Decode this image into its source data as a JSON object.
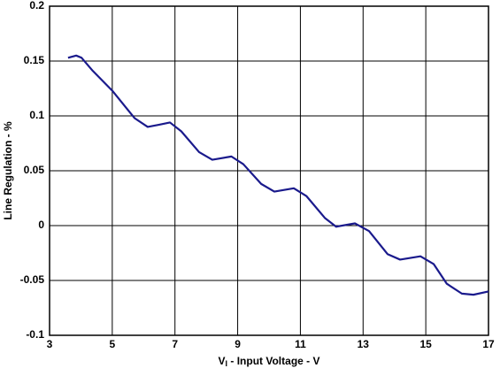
{
  "chart_data": {
    "type": "line",
    "xlabel": {
      "main": "V",
      "sub": "I",
      "rest": " - Input Voltage - V"
    },
    "ylabel": "Line Regulation - %",
    "x": [
      3.59,
      3.85,
      4.02,
      4.38,
      5.0,
      5.71,
      6.13,
      6.5,
      6.84,
      7.2,
      7.77,
      8.19,
      8.8,
      9.18,
      9.75,
      10.17,
      10.79,
      11.19,
      11.78,
      12.14,
      12.74,
      13.19,
      13.78,
      14.18,
      14.83,
      15.25,
      15.67,
      16.15,
      16.52,
      17.0
    ],
    "series": [
      {
        "color": "#1a1a8c",
        "values": [
          0.153,
          0.155,
          0.153,
          0.141,
          0.123,
          0.098,
          0.09,
          0.092,
          0.094,
          0.086,
          0.067,
          0.06,
          0.063,
          0.056,
          0.038,
          0.031,
          0.034,
          0.027,
          0.007,
          -0.001,
          0.002,
          -0.005,
          -0.026,
          -0.031,
          -0.028,
          -0.035,
          -0.053,
          -0.062,
          -0.063,
          -0.06
        ]
      }
    ],
    "xlim": [
      3,
      17
    ],
    "xticks": [
      3,
      5,
      7,
      9,
      11,
      13,
      15,
      17
    ],
    "ylim": [
      -0.1,
      0.2
    ],
    "yticks": [
      -0.1,
      -0.05,
      0,
      0.05,
      0.1,
      0.15,
      0.2
    ],
    "grid": true
  }
}
